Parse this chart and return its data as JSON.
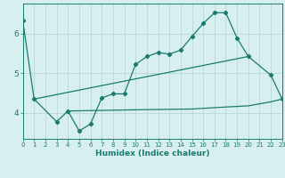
{
  "xlabel": "Humidex (Indice chaleur)",
  "bg_color": "#d8eff0",
  "grid_color": "#b8d8dc",
  "line_color": "#1a7a6e",
  "line1_x": [
    0,
    1,
    3,
    4,
    5,
    6,
    7,
    8,
    9,
    10,
    11,
    12,
    13,
    14,
    15,
    16,
    17,
    18,
    19,
    20,
    22,
    23
  ],
  "line1_y": [
    6.32,
    4.35,
    3.78,
    4.05,
    3.55,
    3.72,
    4.38,
    4.48,
    4.48,
    5.22,
    5.42,
    5.52,
    5.48,
    5.58,
    5.92,
    6.25,
    6.52,
    6.52,
    5.88,
    5.42,
    4.95,
    4.35
  ],
  "line2_x": [
    1,
    20
  ],
  "line2_y": [
    4.35,
    5.42
  ],
  "line3_x": [
    4,
    10,
    15,
    18,
    20,
    22,
    23
  ],
  "line3_y": [
    4.05,
    4.08,
    4.1,
    4.15,
    4.18,
    4.28,
    4.35
  ],
  "xlim": [
    0,
    23
  ],
  "ylim": [
    3.35,
    6.75
  ],
  "yticks": [
    4,
    5,
    6
  ],
  "xticks": [
    0,
    1,
    2,
    3,
    4,
    5,
    6,
    7,
    8,
    9,
    10,
    11,
    12,
    13,
    14,
    15,
    16,
    17,
    18,
    19,
    20,
    21,
    22,
    23
  ],
  "xtick_labels": [
    "0",
    "1",
    "2",
    "3",
    "4",
    "5",
    "6",
    "7",
    "8",
    "9",
    "10",
    "11",
    "12",
    "13",
    "14",
    "15",
    "16",
    "17",
    "18",
    "19",
    "20",
    "21",
    "22",
    "23"
  ],
  "tick_fontsize": 5.0,
  "xlabel_fontsize": 6.5,
  "ytick_fontsize": 6.5
}
